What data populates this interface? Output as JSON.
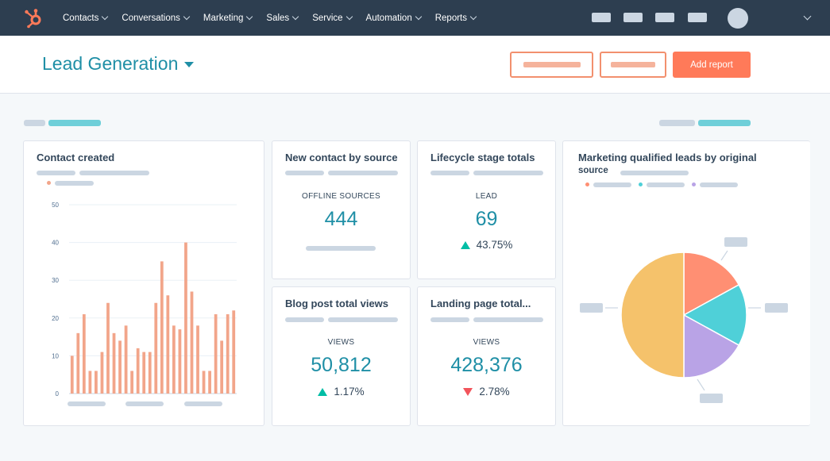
{
  "nav": {
    "items": [
      {
        "label": "Contacts"
      },
      {
        "label": "Conversations"
      },
      {
        "label": "Marketing"
      },
      {
        "label": "Sales"
      },
      {
        "label": "Service"
      },
      {
        "label": "Automation"
      },
      {
        "label": "Reports"
      }
    ],
    "icons": [
      "sprocket-logo-icon",
      "avatar",
      "chevron-down-icon"
    ]
  },
  "header": {
    "title": "Lead Generation",
    "primary_button": "Add report"
  },
  "colors": {
    "nav_bg": "#2d3e50",
    "accent": "#ff7a59",
    "teal": "#1f8fa6",
    "bar": "#f2a58a",
    "up": "#00bda5",
    "down": "#f2545b"
  },
  "cards": {
    "contact_created": {
      "title": "Contact created",
      "chart_data": {
        "type": "bar",
        "yticks": [
          "0",
          "10",
          "20",
          "30",
          "40",
          "50"
        ],
        "ylim": [
          0,
          50
        ],
        "values": [
          10,
          16,
          21,
          6,
          6,
          11,
          24,
          16,
          14,
          18,
          6,
          12,
          11,
          11,
          24,
          35,
          26,
          18,
          17,
          40,
          27,
          18,
          6,
          6,
          21,
          14,
          21,
          22
        ],
        "bar_color": "#f2a58a"
      }
    },
    "new_contact_by_source": {
      "title": "New contact by source",
      "label": "OFFLINE SOURCES",
      "value": "444"
    },
    "lifecycle_stage_totals": {
      "title": "Lifecycle stage totals",
      "label": "LEAD",
      "value": "69",
      "change": "43.75%",
      "direction": "up"
    },
    "blog_post_total_views": {
      "title": "Blog post total views",
      "label": "VIEWS",
      "value": "50,812",
      "change": "1.17%",
      "direction": "up"
    },
    "landing_page_total": {
      "title": "Landing page total...",
      "label": "VIEWS",
      "value": "428,376",
      "change": "2.78%",
      "direction": "down"
    },
    "mql_by_source": {
      "title_line1": "Marketing qualified leads by original",
      "title_line2": "source",
      "chart_data": {
        "type": "pie",
        "slices": [
          {
            "value": 17,
            "color": "#ff8f73"
          },
          {
            "value": 16,
            "color": "#4fd0d8"
          },
          {
            "value": 17,
            "color": "#b9a3e6"
          },
          {
            "value": 50,
            "color": "#f5c26b"
          }
        ],
        "legend_colors": [
          "#ff8f73",
          "#4fd0d8",
          "#b9a3e6"
        ]
      }
    }
  }
}
